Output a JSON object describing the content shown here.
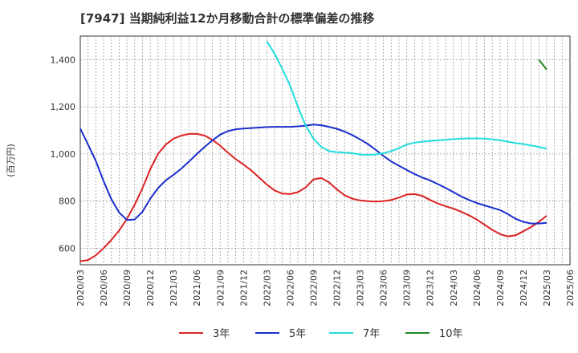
{
  "chart_data": {
    "type": "line",
    "title": "[7947]  当期純利益12か月移動合計の標準偏差の推移",
    "ylabel": "(百万円)",
    "xlabel": "",
    "ylim": [
      530,
      1500
    ],
    "yticks": [
      600,
      800,
      1000,
      1200,
      1400
    ],
    "ytick_labels": [
      "600",
      "800",
      "1,000",
      "1,200",
      "1,400"
    ],
    "x_range": [
      "2020/03",
      "2025/06"
    ],
    "xtick_labels": [
      "2020/03",
      "2020/06",
      "2020/09",
      "2020/12",
      "2021/03",
      "2021/06",
      "2021/09",
      "2021/12",
      "2022/03",
      "2022/06",
      "2022/09",
      "2022/12",
      "2023/03",
      "2023/06",
      "2023/09",
      "2023/12",
      "2024/03",
      "2024/06",
      "2024/09",
      "2024/12",
      "2025/03",
      "2025/06"
    ],
    "grid": true,
    "legend_position": "bottom",
    "series": [
      {
        "name": "3年",
        "color": "#dd2222",
        "points": [
          [
            "2020/03",
            545
          ],
          [
            "2020/04",
            550
          ],
          [
            "2020/05",
            570
          ],
          [
            "2020/06",
            600
          ],
          [
            "2020/07",
            635
          ],
          [
            "2020/08",
            675
          ],
          [
            "2020/09",
            725
          ],
          [
            "2020/10",
            785
          ],
          [
            "2020/11",
            855
          ],
          [
            "2020/12",
            935
          ],
          [
            "2021/01",
            1000
          ],
          [
            "2021/02",
            1040
          ],
          [
            "2021/03",
            1065
          ],
          [
            "2021/04",
            1078
          ],
          [
            "2021/05",
            1085
          ],
          [
            "2021/06",
            1085
          ],
          [
            "2021/07",
            1078
          ],
          [
            "2021/08",
            1060
          ],
          [
            "2021/09",
            1035
          ],
          [
            "2021/10",
            1005
          ],
          [
            "2021/11",
            978
          ],
          [
            "2021/12",
            955
          ],
          [
            "2022/01",
            930
          ],
          [
            "2022/02",
            900
          ],
          [
            "2022/03",
            870
          ],
          [
            "2022/04",
            845
          ],
          [
            "2022/05",
            832
          ],
          [
            "2022/06",
            830
          ],
          [
            "2022/07",
            838
          ],
          [
            "2022/08",
            858
          ],
          [
            "2022/09",
            892
          ],
          [
            "2022/10",
            898
          ],
          [
            "2022/11",
            880
          ],
          [
            "2022/12",
            850
          ],
          [
            "2023/01",
            825
          ],
          [
            "2023/02",
            810
          ],
          [
            "2023/03",
            803
          ],
          [
            "2023/04",
            800
          ],
          [
            "2023/05",
            798
          ],
          [
            "2023/06",
            800
          ],
          [
            "2023/07",
            805
          ],
          [
            "2023/08",
            815
          ],
          [
            "2023/09",
            828
          ],
          [
            "2023/10",
            830
          ],
          [
            "2023/11",
            822
          ],
          [
            "2023/12",
            805
          ],
          [
            "2024/01",
            790
          ],
          [
            "2024/02",
            778
          ],
          [
            "2024/03",
            768
          ],
          [
            "2024/04",
            755
          ],
          [
            "2024/05",
            740
          ],
          [
            "2024/06",
            722
          ],
          [
            "2024/07",
            700
          ],
          [
            "2024/08",
            678
          ],
          [
            "2024/09",
            660
          ],
          [
            "2024/10",
            650
          ],
          [
            "2024/11",
            655
          ],
          [
            "2024/12",
            672
          ],
          [
            "2025/01",
            690
          ],
          [
            "2025/02",
            712
          ],
          [
            "2025/03",
            738
          ]
        ]
      },
      {
        "name": "5年",
        "color": "#1a2ecc",
        "points": [
          [
            "2020/03",
            1108
          ],
          [
            "2020/04",
            1040
          ],
          [
            "2020/05",
            970
          ],
          [
            "2020/06",
            885
          ],
          [
            "2020/07",
            808
          ],
          [
            "2020/08",
            752
          ],
          [
            "2020/09",
            720
          ],
          [
            "2020/10",
            722
          ],
          [
            "2020/11",
            755
          ],
          [
            "2020/12",
            810
          ],
          [
            "2021/01",
            855
          ],
          [
            "2021/02",
            888
          ],
          [
            "2021/03",
            912
          ],
          [
            "2021/04",
            938
          ],
          [
            "2021/05",
            968
          ],
          [
            "2021/06",
            1000
          ],
          [
            "2021/07",
            1030
          ],
          [
            "2021/08",
            1058
          ],
          [
            "2021/09",
            1082
          ],
          [
            "2021/10",
            1097
          ],
          [
            "2021/11",
            1105
          ],
          [
            "2021/12",
            1108
          ],
          [
            "2022/01",
            1110
          ],
          [
            "2022/02",
            1112
          ],
          [
            "2022/03",
            1114
          ],
          [
            "2022/04",
            1115
          ],
          [
            "2022/05",
            1115
          ],
          [
            "2022/06",
            1115
          ],
          [
            "2022/07",
            1117
          ],
          [
            "2022/08",
            1120
          ],
          [
            "2022/09",
            1125
          ],
          [
            "2022/10",
            1122
          ],
          [
            "2022/11",
            1115
          ],
          [
            "2022/12",
            1107
          ],
          [
            "2023/01",
            1095
          ],
          [
            "2023/02",
            1080
          ],
          [
            "2023/03",
            1062
          ],
          [
            "2023/04",
            1042
          ],
          [
            "2023/05",
            1018
          ],
          [
            "2023/06",
            992
          ],
          [
            "2023/07",
            968
          ],
          [
            "2023/08",
            950
          ],
          [
            "2023/09",
            932
          ],
          [
            "2023/10",
            915
          ],
          [
            "2023/11",
            900
          ],
          [
            "2023/12",
            888
          ],
          [
            "2024/01",
            872
          ],
          [
            "2024/02",
            856
          ],
          [
            "2024/03",
            838
          ],
          [
            "2024/04",
            820
          ],
          [
            "2024/05",
            805
          ],
          [
            "2024/06",
            792
          ],
          [
            "2024/07",
            782
          ],
          [
            "2024/08",
            772
          ],
          [
            "2024/09",
            762
          ],
          [
            "2024/10",
            745
          ],
          [
            "2024/11",
            725
          ],
          [
            "2024/12",
            712
          ],
          [
            "2025/01",
            705
          ],
          [
            "2025/02",
            705
          ],
          [
            "2025/03",
            708
          ]
        ]
      },
      {
        "name": "7年",
        "color": "#22dddd",
        "points": [
          [
            "2022/03",
            1478
          ],
          [
            "2022/04",
            1425
          ],
          [
            "2022/05",
            1360
          ],
          [
            "2022/06",
            1290
          ],
          [
            "2022/07",
            1200
          ],
          [
            "2022/08",
            1120
          ],
          [
            "2022/09",
            1065
          ],
          [
            "2022/10",
            1030
          ],
          [
            "2022/11",
            1012
          ],
          [
            "2022/12",
            1008
          ],
          [
            "2023/01",
            1006
          ],
          [
            "2023/02",
            1003
          ],
          [
            "2023/03",
            998
          ],
          [
            "2023/04",
            996
          ],
          [
            "2023/05",
            998
          ],
          [
            "2023/06",
            1003
          ],
          [
            "2023/07",
            1012
          ],
          [
            "2023/08",
            1025
          ],
          [
            "2023/09",
            1040
          ],
          [
            "2023/10",
            1048
          ],
          [
            "2023/11",
            1052
          ],
          [
            "2023/12",
            1055
          ],
          [
            "2024/01",
            1058
          ],
          [
            "2024/02",
            1060
          ],
          [
            "2024/03",
            1063
          ],
          [
            "2024/04",
            1065
          ],
          [
            "2024/05",
            1066
          ],
          [
            "2024/06",
            1066
          ],
          [
            "2024/07",
            1065
          ],
          [
            "2024/08",
            1062
          ],
          [
            "2024/09",
            1058
          ],
          [
            "2024/10",
            1052
          ],
          [
            "2024/11",
            1046
          ],
          [
            "2024/12",
            1042
          ],
          [
            "2025/01",
            1036
          ],
          [
            "2025/02",
            1030
          ],
          [
            "2025/03",
            1022
          ]
        ]
      },
      {
        "name": "10年",
        "color": "#228822",
        "points": [
          [
            "2025/02",
            1400
          ],
          [
            "2025/03",
            1358
          ]
        ]
      }
    ]
  }
}
